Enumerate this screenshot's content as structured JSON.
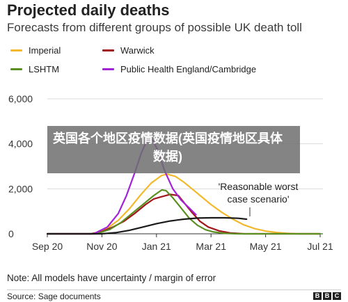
{
  "title": "Projected daily deaths",
  "subtitle": "Forecasts from different groups of possible UK death toll",
  "note": "Note: All models have uncertainty / margin of error",
  "source": "Source: Sage documents",
  "brand": [
    "B",
    "B",
    "C"
  ],
  "overlay_text": "英国各个地区疫情数据(英国疫情地区具体数据)",
  "annotation": {
    "line1": "'Reasonable worst",
    "line2": "case scenario'"
  },
  "chart_data": {
    "type": "line",
    "title": "Projected daily deaths",
    "xlabel": "",
    "ylabel": "",
    "ylim": [
      0,
      6000
    ],
    "yticks": [
      0,
      2000,
      4000,
      6000
    ],
    "ytick_labels": [
      "0",
      "2,000",
      "4,000",
      "6,000"
    ],
    "x_ticks": [
      "Sep 20",
      "Nov 20",
      "Jan 21",
      "Mar 21",
      "May 21",
      "Jul 21"
    ],
    "x_unit": "months from Sep 2020",
    "xlim": [
      0,
      10
    ],
    "legend": "top-left, two columns",
    "grid": "horizontal",
    "series": [
      {
        "name": "Imperial",
        "color": "#f2b92d",
        "points": [
          [
            0.0,
            0
          ],
          [
            1.0,
            0
          ],
          [
            1.7,
            0
          ],
          [
            2.2,
            250
          ],
          [
            2.6,
            600
          ],
          [
            3.0,
            1100
          ],
          [
            3.4,
            1700
          ],
          [
            3.8,
            2250
          ],
          [
            4.2,
            2600
          ],
          [
            4.4,
            2650
          ],
          [
            4.7,
            2550
          ],
          [
            5.0,
            2300
          ],
          [
            5.3,
            2000
          ],
          [
            5.6,
            1700
          ],
          [
            6.0,
            1300
          ],
          [
            6.4,
            950
          ],
          [
            6.8,
            650
          ],
          [
            7.2,
            400
          ],
          [
            7.6,
            230
          ],
          [
            8.0,
            120
          ],
          [
            8.4,
            60
          ],
          [
            8.8,
            20
          ],
          [
            9.2,
            0
          ],
          [
            10.0,
            0
          ]
        ]
      },
      {
        "name": "Warwick",
        "color": "#a3161c",
        "points": [
          [
            0.0,
            0
          ],
          [
            1.6,
            0
          ],
          [
            2.0,
            100
          ],
          [
            2.4,
            300
          ],
          [
            2.8,
            550
          ],
          [
            3.2,
            900
          ],
          [
            3.6,
            1300
          ],
          [
            3.9,
            1550
          ],
          [
            4.2,
            1650
          ],
          [
            4.5,
            1750
          ],
          [
            4.8,
            1700
          ],
          [
            5.0,
            1400
          ],
          [
            5.3,
            950
          ],
          [
            5.6,
            550
          ],
          [
            5.9,
            300
          ],
          [
            6.3,
            130
          ],
          [
            6.7,
            40
          ],
          [
            7.2,
            0
          ],
          [
            10.0,
            0
          ]
        ]
      },
      {
        "name": "LSHTM",
        "color": "#5a8f21",
        "points": [
          [
            0.0,
            0
          ],
          [
            1.8,
            0
          ],
          [
            2.3,
            200
          ],
          [
            2.7,
            500
          ],
          [
            3.1,
            900
          ],
          [
            3.5,
            1300
          ],
          [
            3.9,
            1700
          ],
          [
            4.2,
            1950
          ],
          [
            4.35,
            1920
          ],
          [
            4.6,
            1600
          ],
          [
            4.9,
            1150
          ],
          [
            5.2,
            700
          ],
          [
            5.5,
            380
          ],
          [
            5.8,
            180
          ],
          [
            6.1,
            80
          ],
          [
            6.5,
            20
          ],
          [
            7.0,
            0
          ],
          [
            10.0,
            0
          ]
        ]
      },
      {
        "name": "Public Health England/Cambridge",
        "color": "#a322d8",
        "points": [
          [
            0.0,
            0
          ],
          [
            1.7,
            0
          ],
          [
            2.2,
            300
          ],
          [
            2.6,
            900
          ],
          [
            2.9,
            1700
          ],
          [
            3.2,
            2700
          ],
          [
            3.45,
            3600
          ],
          [
            3.65,
            4150
          ],
          [
            3.85,
            4200
          ],
          [
            4.05,
            3700
          ],
          [
            4.3,
            2800
          ],
          [
            4.6,
            2000
          ],
          [
            4.9,
            1500
          ],
          [
            5.2,
            1150
          ],
          [
            5.45,
            850
          ]
        ]
      },
      {
        "name": "'Reasonable worst case scenario'",
        "color": "#1a1a1a",
        "points": [
          [
            0.0,
            0
          ],
          [
            2.0,
            0
          ],
          [
            2.5,
            50
          ],
          [
            3.0,
            150
          ],
          [
            3.5,
            300
          ],
          [
            4.0,
            450
          ],
          [
            4.5,
            570
          ],
          [
            5.0,
            650
          ],
          [
            5.5,
            700
          ],
          [
            6.0,
            710
          ],
          [
            6.5,
            710
          ],
          [
            7.0,
            690
          ],
          [
            7.3,
            650
          ]
        ]
      }
    ],
    "legend_entries": [
      {
        "label": "Imperial",
        "color": "#f2b92d"
      },
      {
        "label": "Warwick",
        "color": "#a3161c"
      },
      {
        "label": "LSHTM",
        "color": "#5a8f21"
      },
      {
        "label": "Public Health England/Cambridge",
        "color": "#a322d8"
      }
    ]
  }
}
